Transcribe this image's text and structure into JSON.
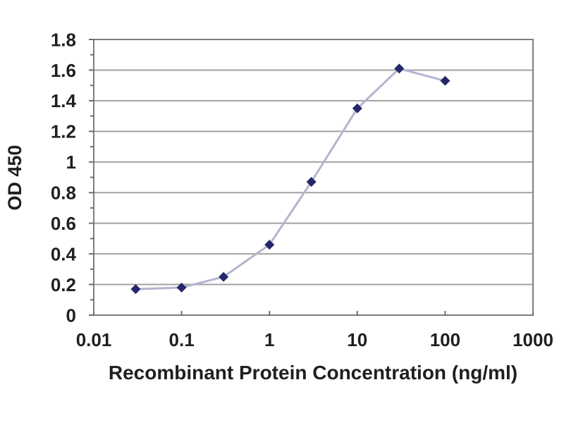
{
  "chart_data": {
    "type": "line",
    "title": "",
    "xlabel": "Recombinant Protein Concentration (ng/ml)",
    "ylabel": "OD 450",
    "x_scale": "log",
    "y_scale": "linear",
    "xlim": [
      0.01,
      1000
    ],
    "ylim": [
      0,
      1.8
    ],
    "x_tick_values": [
      0.01,
      0.1,
      1,
      10,
      100,
      1000
    ],
    "x_tick_labels": [
      "0.01",
      "0.1",
      "1",
      "10",
      "100",
      "1000"
    ],
    "y_tick_values": [
      0,
      0.2,
      0.4,
      0.6,
      0.8,
      1,
      1.2,
      1.4,
      1.6,
      1.8
    ],
    "y_tick_labels": [
      "0",
      "0.2",
      "0.4",
      "0.6",
      "0.8",
      "1",
      "1.2",
      "1.4",
      "1.6",
      "1.8"
    ],
    "y_minor_tick_step": 0.1,
    "grid": "horizontal-major",
    "legend": "none",
    "series": [
      {
        "name": "OD 450",
        "marker": "diamond",
        "x": [
          0.03,
          0.1,
          0.3,
          1,
          3,
          10,
          30,
          100
        ],
        "y": [
          0.17,
          0.18,
          0.25,
          0.46,
          0.87,
          1.35,
          1.61,
          1.53
        ]
      }
    ]
  },
  "colors": {
    "background": "#ffffff",
    "marker": "#26266a",
    "series_line": "#b4b4cf",
    "gridline": "#a2a2a2",
    "axis_border": "#7e7e7e",
    "tick": "#6e6e6e",
    "text": "#1f1f1f"
  }
}
